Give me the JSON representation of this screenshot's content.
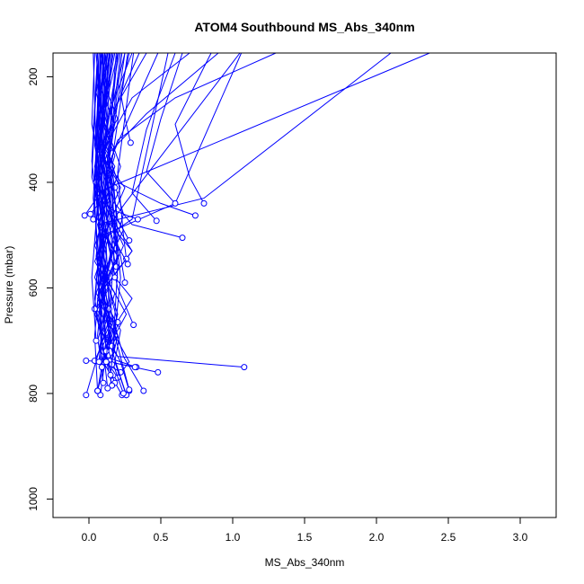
{
  "chart_data": {
    "type": "line",
    "title": "ATOM4 Southbound MS_Abs_340nm",
    "xlabel": "MS_Abs_340nm",
    "ylabel": "Pressure (mbar)",
    "xlim": [
      -0.25,
      3.25
    ],
    "ylim": [
      1035,
      155
    ],
    "y_reversed": true,
    "x_ticks": [
      "0.0",
      "0.5",
      "1.0",
      "1.5",
      "2.0",
      "2.5",
      "3.0"
    ],
    "y_ticks": [
      "200",
      "400",
      "600",
      "800",
      "1000"
    ],
    "grid": false,
    "series_color": "#0000ff",
    "marker": "open-circle",
    "profiles": [
      {
        "x": [
          0.1,
          0.05,
          0.12,
          0.08,
          0.15,
          0.06,
          0.2,
          0.09,
          0.14,
          0.07,
          -0.02
        ],
        "y": [
          155,
          230,
          300,
          360,
          420,
          480,
          540,
          600,
          660,
          720,
          803
        ]
      },
      {
        "x": [
          0.12,
          0.08,
          0.18,
          0.1,
          0.22,
          0.12,
          0.3,
          0.14,
          0.26,
          0.12,
          0.08
        ],
        "y": [
          155,
          220,
          290,
          350,
          410,
          470,
          530,
          590,
          650,
          720,
          803
        ]
      },
      {
        "x": [
          0.15,
          0.1,
          0.2,
          0.06,
          0.25,
          0.14,
          0.18,
          0.08,
          0.22,
          0.18,
          0.26
        ],
        "y": [
          155,
          210,
          280,
          340,
          410,
          480,
          550,
          610,
          680,
          740,
          803
        ]
      },
      {
        "x": [
          0.08,
          0.14,
          0.06,
          0.18,
          0.1,
          0.24,
          0.12,
          0.3,
          0.16,
          0.1,
          0.23
        ],
        "y": [
          155,
          240,
          310,
          370,
          430,
          490,
          560,
          620,
          680,
          740,
          803
        ]
      },
      {
        "x": [
          0.2,
          0.12,
          0.08,
          0.16,
          0.06,
          0.2,
          0.1,
          0.18,
          0.24,
          0.38
        ],
        "y": [
          155,
          250,
          330,
          400,
          470,
          540,
          600,
          670,
          730,
          795
        ]
      },
      {
        "x": [
          0.35,
          0.18,
          0.1,
          0.14,
          0.09,
          0.16,
          0.08,
          0.2,
          0.12,
          0.06
        ],
        "y": [
          155,
          260,
          340,
          410,
          470,
          540,
          610,
          670,
          730,
          795
        ]
      },
      {
        "x": [
          0.9,
          0.4,
          0.12,
          0.06,
          0.14,
          0.04,
          0.18,
          0.1,
          0.22,
          0.28
        ],
        "y": [
          155,
          270,
          350,
          410,
          480,
          550,
          610,
          680,
          740,
          795
        ]
      },
      {
        "x": [
          2.37,
          0.05,
          0.1,
          0.04,
          0.12,
          0.06,
          0.16,
          0.08,
          0.14,
          0.48
        ],
        "y": [
          155,
          420,
          470,
          520,
          570,
          620,
          670,
          720,
          740,
          760
        ]
      },
      {
        "x": [
          2.1,
          0.8,
          0.06,
          0.1,
          0.04,
          0.12,
          0.08,
          0.18,
          0.12,
          -0.02
        ],
        "y": [
          155,
          430,
          480,
          530,
          580,
          630,
          680,
          720,
          740,
          738
        ]
      },
      {
        "x": [
          1.05,
          0.25,
          0.12,
          0.07,
          0.15,
          0.05,
          0.2,
          0.11,
          0.33
        ],
        "y": [
          155,
          440,
          490,
          540,
          590,
          640,
          690,
          730,
          750
        ]
      },
      {
        "x": [
          1.06,
          0.6,
          0.1,
          0.06,
          0.14,
          0.04,
          0.12,
          0.2,
          1.08
        ],
        "y": [
          155,
          440,
          500,
          550,
          600,
          650,
          700,
          730,
          750
        ]
      },
      {
        "x": [
          0.55,
          0.3,
          0.08,
          0.12,
          0.05,
          0.16,
          0.08,
          0.14,
          0.32
        ],
        "y": [
          155,
          470,
          510,
          560,
          610,
          660,
          710,
          740,
          750
        ]
      },
      {
        "x": [
          0.12,
          0.06,
          0.18,
          0.09,
          0.24,
          0.11,
          0.16,
          0.28,
          0.17
        ],
        "y": [
          155,
          260,
          350,
          430,
          520,
          600,
          680,
          740,
          780
        ]
      },
      {
        "x": [
          0.14,
          0.1,
          0.22,
          0.12,
          0.3,
          0.08,
          0.2,
          0.15,
          0.2
        ],
        "y": [
          155,
          280,
          370,
          450,
          530,
          610,
          690,
          750,
          770
        ]
      },
      {
        "x": [
          1.3,
          0.6,
          0.2,
          0.1,
          0.16,
          0.08,
          0.12,
          0.06,
          0.1
        ],
        "y": [
          155,
          240,
          320,
          400,
          480,
          560,
          640,
          700,
          740
        ]
      },
      {
        "x": [
          0.48,
          0.16,
          0.09,
          0.18,
          0.07,
          0.15,
          0.1,
          0.22
        ],
        "y": [
          155,
          350,
          440,
          520,
          600,
          680,
          740,
          760
        ]
      },
      {
        "x": [
          0.07,
          0.03,
          0.1,
          0.05,
          0.12,
          0.07,
          0.04
        ],
        "y": [
          155,
          300,
          420,
          540,
          640,
          720,
          738
        ]
      },
      {
        "x": [
          0.11,
          0.06,
          0.15,
          0.08,
          0.2,
          0.12,
          0.17
        ],
        "y": [
          155,
          310,
          430,
          550,
          650,
          730,
          775
        ]
      },
      {
        "x": [
          0.16,
          0.09,
          0.24,
          0.12,
          0.18,
          0.28
        ],
        "y": [
          155,
          320,
          460,
          580,
          690,
          793
        ]
      },
      {
        "x": [
          0.09,
          0.04,
          0.14,
          0.06,
          0.12,
          0.06
        ],
        "y": [
          155,
          330,
          470,
          590,
          700,
          795
        ]
      },
      {
        "x": [
          0.13,
          0.07,
          0.19,
          0.1,
          0.15,
          0.26
        ],
        "y": [
          155,
          340,
          480,
          600,
          710,
          803
        ]
      },
      {
        "x": [
          0.06,
          0.02,
          0.08,
          0.04,
          0.1,
          0.18
        ],
        "y": [
          155,
          360,
          500,
          620,
          720,
          780
        ]
      },
      {
        "x": [
          0.14,
          0.06,
          0.1,
          0.05,
          0.16
        ],
        "y": [
          155,
          380,
          520,
          650,
          785
        ]
      },
      {
        "x": [
          0.06,
          0.02,
          0.16,
          0.06,
          0.24
        ],
        "y": [
          155,
          390,
          530,
          660,
          800
        ]
      },
      {
        "x": [
          0.1,
          0.05,
          0.12,
          0.08,
          0.13
        ],
        "y": [
          155,
          400,
          540,
          670,
          790
        ]
      },
      {
        "x": [
          0.08,
          0.04,
          0.11,
          0.06,
          0.1
        ],
        "y": [
          155,
          410,
          560,
          690,
          780
        ]
      },
      {
        "x": [
          0.05,
          0.12,
          0.06,
          0.09,
          0.07
        ],
        "y": [
          155,
          420,
          560,
          680,
          740
        ]
      },
      {
        "x": [
          0.09,
          0.03,
          0.08,
          0.04,
          0.06
        ],
        "y": [
          155,
          430,
          570,
          690,
          795
        ]
      },
      {
        "x": [
          0.3,
          0.15,
          0.08,
          0.12,
          0.2,
          0.31
        ],
        "y": [
          155,
          260,
          380,
          500,
          600,
          670
        ]
      },
      {
        "x": [
          0.4,
          0.2,
          0.1,
          0.18,
          0.3,
          0.65
        ],
        "y": [
          155,
          250,
          350,
          440,
          480,
          505
        ]
      },
      {
        "x": [
          0.7,
          0.3,
          0.12,
          0.2,
          0.5,
          0.74
        ],
        "y": [
          155,
          240,
          330,
          400,
          440,
          463
        ]
      },
      {
        "x": [
          0.25,
          0.12,
          0.06,
          0.14,
          0.34
        ],
        "y": [
          155,
          300,
          400,
          450,
          470
        ]
      },
      {
        "x": [
          0.18,
          0.08,
          0.04,
          0.1,
          0.01
        ],
        "y": [
          155,
          300,
          380,
          430,
          460
        ]
      },
      {
        "x": [
          0.05,
          0.1,
          0.04,
          0.08,
          -0.03
        ],
        "y": [
          155,
          290,
          370,
          420,
          463
        ]
      },
      {
        "x": [
          0.04,
          0.02,
          0.07,
          0.04,
          0.03
        ],
        "y": [
          155,
          290,
          360,
          420,
          470
        ]
      },
      {
        "x": [
          0.13,
          0.06,
          0.11,
          0.1,
          0.05
        ],
        "y": [
          155,
          270,
          340,
          380,
          400
        ]
      },
      {
        "x": [
          0.17,
          0.1,
          0.15,
          0.12,
          0.18
        ],
        "y": [
          155,
          260,
          320,
          380,
          410
        ]
      },
      {
        "x": [
          0.28,
          0.22,
          0.26,
          0.29
        ],
        "y": [
          155,
          230,
          290,
          325
        ]
      },
      {
        "x": [
          0.6,
          0.4,
          0.3,
          0.47
        ],
        "y": [
          155,
          300,
          420,
          473
        ]
      },
      {
        "x": [
          0.65,
          0.5,
          0.4,
          0.6
        ],
        "y": [
          155,
          280,
          380,
          440
        ]
      },
      {
        "x": [
          0.85,
          0.6,
          0.7,
          0.8
        ],
        "y": [
          155,
          290,
          390,
          440
        ]
      },
      {
        "x": [
          0.21,
          0.1,
          0.16,
          0.19
        ],
        "y": [
          155,
          330,
          470,
          525
        ]
      },
      {
        "x": [
          0.25,
          0.14,
          0.2,
          0.28
        ],
        "y": [
          155,
          360,
          470,
          510
        ]
      },
      {
        "x": [
          0.31,
          0.2,
          0.24,
          0.26
        ],
        "y": [
          155,
          380,
          500,
          545
        ]
      },
      {
        "x": [
          0.23,
          0.12,
          0.2,
          0.27
        ],
        "y": [
          155,
          400,
          520,
          555
        ]
      },
      {
        "x": [
          0.19,
          0.11,
          0.22,
          0.25
        ],
        "y": [
          155,
          420,
          540,
          590
        ]
      },
      {
        "x": [
          0.27,
          0.16,
          0.2,
          0.19
        ],
        "y": [
          155,
          360,
          500,
          560
        ]
      },
      {
        "x": [
          0.16,
          0.1,
          0.14,
          0.18
        ],
        "y": [
          155,
          380,
          520,
          580
        ]
      },
      {
        "x": [
          0.11,
          0.07,
          0.12,
          0.14
        ],
        "y": [
          155,
          400,
          520,
          640
        ]
      },
      {
        "x": [
          0.08,
          0.05,
          0.09,
          0.2
        ],
        "y": [
          155,
          410,
          550,
          665
        ]
      },
      {
        "x": [
          0.07,
          0.04,
          0.06,
          0.04
        ],
        "y": [
          155,
          430,
          560,
          640
        ]
      },
      {
        "x": [
          0.03,
          0.06,
          0.02,
          0.05
        ],
        "y": [
          155,
          440,
          580,
          700
        ]
      },
      {
        "x": [
          0.14,
          0.09,
          0.11,
          0.16
        ],
        "y": [
          155,
          370,
          590,
          710
        ]
      },
      {
        "x": [
          0.12,
          0.08,
          0.1,
          0.12
        ],
        "y": [
          155,
          390,
          600,
          720
        ]
      },
      {
        "x": [
          0.1,
          0.06,
          0.09,
          0.16
        ],
        "y": [
          155,
          420,
          620,
          710
        ]
      },
      {
        "x": [
          0.09,
          0.13,
          0.05,
          0.09
        ],
        "y": [
          155,
          300,
          480,
          750
        ]
      },
      {
        "x": [
          0.15,
          0.08,
          0.18,
          0.12
        ],
        "y": [
          155,
          320,
          510,
          740
        ]
      },
      {
        "x": [
          0.22,
          0.14,
          0.2,
          0.16
        ],
        "y": [
          155,
          340,
          560,
          745
        ]
      },
      {
        "x": [
          0.2,
          0.13,
          0.22,
          0.15
        ],
        "y": [
          155,
          350,
          580,
          765
        ]
      }
    ]
  }
}
